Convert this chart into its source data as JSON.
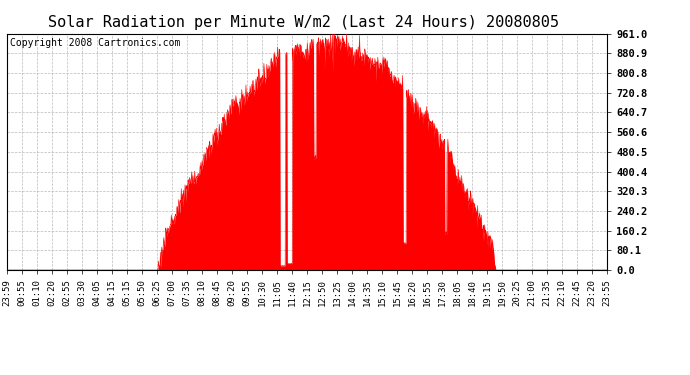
{
  "title": "Solar Radiation per Minute W/m2 (Last 24 Hours) 20080805",
  "copyright": "Copyright 2008 Cartronics.com",
  "fill_color": "#FF0000",
  "line_color": "#FF0000",
  "dashed_line_color": "#FF0000",
  "background_color": "#FFFFFF",
  "grid_color": "#AAAAAA",
  "yticks": [
    0.0,
    80.1,
    160.2,
    240.2,
    320.3,
    400.4,
    480.5,
    560.6,
    640.7,
    720.8,
    800.8,
    880.9,
    961.0
  ],
  "ymax": 961.0,
  "ymin": 0.0,
  "xtick_labels": [
    "23:59",
    "00:55",
    "01:10",
    "02:20",
    "02:55",
    "03:30",
    "04:05",
    "04:15",
    "05:15",
    "05:50",
    "06:25",
    "07:00",
    "07:35",
    "08:10",
    "08:45",
    "09:20",
    "09:55",
    "10:30",
    "11:05",
    "11:40",
    "12:15",
    "12:50",
    "13:25",
    "14:00",
    "14:35",
    "15:10",
    "15:45",
    "16:20",
    "16:55",
    "17:30",
    "18:05",
    "18:40",
    "19:15",
    "19:50",
    "20:25",
    "21:00",
    "21:35",
    "22:10",
    "22:45",
    "23:20",
    "23:55"
  ],
  "title_fontsize": 11,
  "copyright_fontsize": 7,
  "tick_fontsize": 6.5,
  "ytick_fontsize": 7.5
}
